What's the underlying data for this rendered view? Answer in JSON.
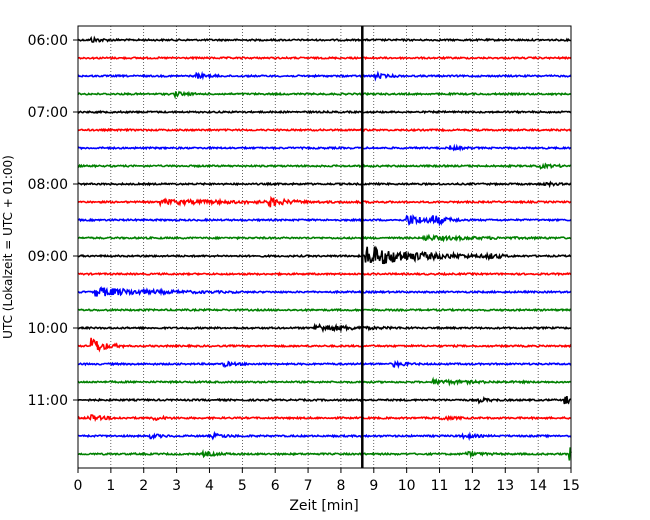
{
  "chart_data": {
    "type": "line",
    "title": "",
    "xlabel": "Zeit  [min]",
    "ylabel": "UTC (Lokalzeit = UTC + 01:00)",
    "xlim": [
      0,
      15
    ],
    "x_ticks": [
      0,
      1,
      2,
      3,
      4,
      5,
      6,
      7,
      8,
      9,
      10,
      11,
      12,
      13,
      14,
      15
    ],
    "x_tick_labels": [
      "0",
      "1",
      "2",
      "3",
      "4",
      "5",
      "6",
      "7",
      "8",
      "9",
      "10",
      "11",
      "12",
      "13",
      "14",
      "15"
    ],
    "y_tick_labels": [
      "06:00",
      "07:00",
      "08:00",
      "09:00",
      "10:00",
      "11:00"
    ],
    "y_tick_trace_index": [
      0,
      4,
      8,
      12,
      16,
      20
    ],
    "grid": "vertical dotted lines at each minute",
    "trace_interval_minutes": 15,
    "trace_colors": [
      "#000000",
      "#ff0000",
      "#0000ff",
      "#008000"
    ],
    "traces": [
      {
        "start": "06:00",
        "color": "#000000"
      },
      {
        "start": "06:15",
        "color": "#ff0000"
      },
      {
        "start": "06:30",
        "color": "#0000ff"
      },
      {
        "start": "06:45",
        "color": "#008000"
      },
      {
        "start": "07:00",
        "color": "#000000"
      },
      {
        "start": "07:15",
        "color": "#ff0000"
      },
      {
        "start": "07:30",
        "color": "#0000ff"
      },
      {
        "start": "07:45",
        "color": "#008000"
      },
      {
        "start": "08:00",
        "color": "#000000"
      },
      {
        "start": "08:15",
        "color": "#ff0000"
      },
      {
        "start": "08:30",
        "color": "#0000ff"
      },
      {
        "start": "08:45",
        "color": "#008000"
      },
      {
        "start": "09:00",
        "color": "#000000"
      },
      {
        "start": "09:15",
        "color": "#ff0000"
      },
      {
        "start": "09:30",
        "color": "#0000ff"
      },
      {
        "start": "09:45",
        "color": "#008000"
      },
      {
        "start": "10:00",
        "color": "#000000"
      },
      {
        "start": "10:15",
        "color": "#ff0000"
      },
      {
        "start": "10:30",
        "color": "#0000ff"
      },
      {
        "start": "10:45",
        "color": "#008000"
      },
      {
        "start": "11:00",
        "color": "#000000"
      },
      {
        "start": "11:15",
        "color": "#ff0000"
      },
      {
        "start": "11:30",
        "color": "#0000ff"
      },
      {
        "start": "11:45",
        "color": "#008000"
      }
    ],
    "event_marker_minute": 8.65,
    "events": [
      {
        "trace": 0,
        "minute": 0.4,
        "amp": 0.25,
        "dur": 0.3
      },
      {
        "trace": 2,
        "minute": 3.6,
        "amp": 0.25,
        "dur": 0.3
      },
      {
        "trace": 2,
        "minute": 9.0,
        "amp": 0.3,
        "dur": 0.3
      },
      {
        "trace": 3,
        "minute": 2.9,
        "amp": 0.25,
        "dur": 0.3
      },
      {
        "trace": 6,
        "minute": 11.3,
        "amp": 0.2,
        "dur": 0.3
      },
      {
        "trace": 7,
        "minute": 14.0,
        "amp": 0.2,
        "dur": 0.4
      },
      {
        "trace": 8,
        "minute": 14.2,
        "amp": 0.25,
        "dur": 0.2
      },
      {
        "trace": 9,
        "minute": 5.8,
        "amp": 0.45,
        "dur": 0.4
      },
      {
        "trace": 9,
        "minute": 2.5,
        "amp": 0.2,
        "dur": 2.5
      },
      {
        "trace": 10,
        "minute": 10.0,
        "amp": 0.55,
        "dur": 0.6
      },
      {
        "trace": 10,
        "minute": 10.8,
        "amp": 0.4,
        "dur": 0.3
      },
      {
        "trace": 11,
        "minute": 10.5,
        "amp": 0.2,
        "dur": 1.5
      },
      {
        "trace": 12,
        "minute": 8.75,
        "amp": 1.1,
        "dur": 1.4
      },
      {
        "trace": 12,
        "minute": 12.4,
        "amp": 0.25,
        "dur": 0.3
      },
      {
        "trace": 14,
        "minute": 0.5,
        "amp": 0.45,
        "dur": 1.5
      },
      {
        "trace": 16,
        "minute": 7.2,
        "amp": 0.35,
        "dur": 1.0
      },
      {
        "trace": 17,
        "minute": 0.4,
        "amp": 0.9,
        "dur": 0.35
      },
      {
        "trace": 18,
        "minute": 4.4,
        "amp": 0.25,
        "dur": 0.3
      },
      {
        "trace": 18,
        "minute": 9.6,
        "amp": 0.25,
        "dur": 0.3
      },
      {
        "trace": 19,
        "minute": 10.8,
        "amp": 0.2,
        "dur": 1.0
      },
      {
        "trace": 20,
        "minute": 14.8,
        "amp": 0.4,
        "dur": 0.4
      },
      {
        "trace": 20,
        "minute": 12.2,
        "amp": 0.2,
        "dur": 0.3
      },
      {
        "trace": 21,
        "minute": 0.3,
        "amp": 0.3,
        "dur": 0.4
      },
      {
        "trace": 21,
        "minute": 2.3,
        "amp": 0.2,
        "dur": 0.3
      },
      {
        "trace": 21,
        "minute": 11.0,
        "amp": 0.2,
        "dur": 0.3
      },
      {
        "trace": 22,
        "minute": 2.2,
        "amp": 0.2,
        "dur": 0.3
      },
      {
        "trace": 22,
        "minute": 4.1,
        "amp": 0.2,
        "dur": 0.4
      },
      {
        "trace": 22,
        "minute": 11.7,
        "amp": 0.25,
        "dur": 0.3
      },
      {
        "trace": 23,
        "minute": 14.95,
        "amp": 0.8,
        "dur": 0.1
      },
      {
        "trace": 23,
        "minute": 11.8,
        "amp": 0.2,
        "dur": 0.4
      },
      {
        "trace": 23,
        "minute": 3.8,
        "amp": 0.2,
        "dur": 0.4
      }
    ]
  }
}
